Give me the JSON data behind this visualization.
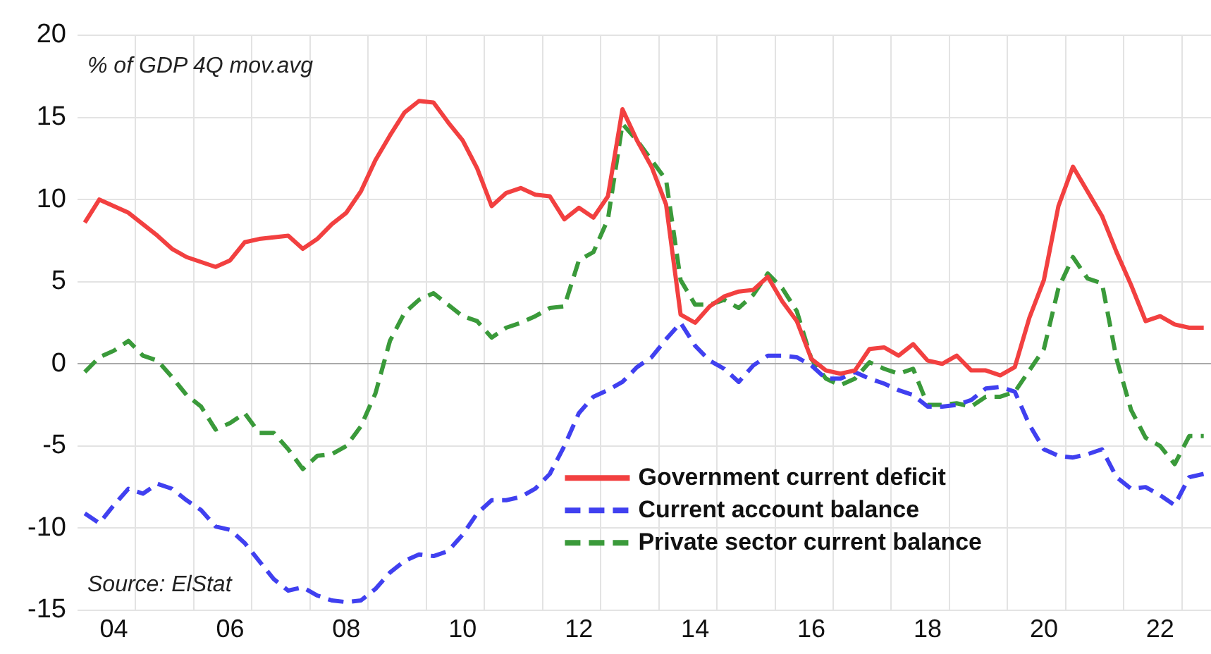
{
  "chart_data": {
    "type": "line",
    "ylabel": "% of GDP 4Q mov.avg",
    "annotations": [
      "Source: ElStat"
    ],
    "categories": [
      null,
      null,
      "04",
      null,
      null,
      null,
      null,
      null,
      null,
      null,
      "06",
      null,
      null,
      null,
      null,
      null,
      null,
      null,
      "08",
      null,
      null,
      null,
      null,
      null,
      null,
      null,
      "10",
      null,
      null,
      null,
      null,
      null,
      null,
      null,
      "12",
      null,
      null,
      null,
      null,
      null,
      null,
      null,
      "14",
      null,
      null,
      null,
      null,
      null,
      null,
      null,
      "16",
      null,
      null,
      null,
      null,
      null,
      null,
      null,
      "18",
      null,
      null,
      null,
      null,
      null,
      null,
      null,
      "20",
      null,
      null,
      null,
      null,
      null,
      null,
      null,
      "22",
      null,
      null,
      null
    ],
    "series": [
      {
        "name": "Government current deficit",
        "color": "#f24040",
        "line_style": "solid",
        "values": [
          8.6,
          10.0,
          9.6,
          9.2,
          8.5,
          7.8,
          7.0,
          6.5,
          6.2,
          5.9,
          6.3,
          7.4,
          7.6,
          7.7,
          7.8,
          7.0,
          7.6,
          8.5,
          9.2,
          10.5,
          12.4,
          13.9,
          15.3,
          16.0,
          15.9,
          14.7,
          13.6,
          11.9,
          9.6,
          10.4,
          10.7,
          10.3,
          10.2,
          8.8,
          9.5,
          8.9,
          10.2,
          15.5,
          13.6,
          12.0,
          9.7,
          3.0,
          2.5,
          3.5,
          4.1,
          4.4,
          4.5,
          5.3,
          3.8,
          2.6,
          0.3,
          -0.4,
          -0.6,
          -0.4,
          0.9,
          1.0,
          0.5,
          1.2,
          0.2,
          0.0,
          0.5,
          -0.4,
          -0.4,
          -0.7,
          -0.2,
          2.8,
          5.1,
          9.6,
          12.0,
          10.5,
          9.0,
          6.8,
          4.8,
          2.6,
          2.9,
          2.4,
          2.2,
          2.2
        ]
      },
      {
        "name": "Current account balance",
        "color": "#4040f0",
        "line_style": "dashed",
        "values": [
          -9.1,
          -9.7,
          -8.6,
          -7.6,
          -7.9,
          -7.3,
          -7.6,
          -8.3,
          -8.9,
          -9.9,
          -10.1,
          -10.9,
          -12.0,
          -13.1,
          -13.8,
          -13.6,
          -14.1,
          -14.4,
          -14.5,
          -14.4,
          -13.7,
          -12.7,
          -12.0,
          -11.6,
          -11.7,
          -11.4,
          -10.4,
          -9.1,
          -8.3,
          -8.3,
          -8.1,
          -7.6,
          -6.7,
          -5.0,
          -3.0,
          -2.0,
          -1.6,
          -1.1,
          -0.2,
          0.4,
          1.5,
          2.5,
          1.1,
          0.2,
          -0.3,
          -1.1,
          -0.1,
          0.5,
          0.5,
          0.4,
          -0.1,
          -0.9,
          -0.9,
          -0.5,
          -0.9,
          -1.2,
          -1.6,
          -1.9,
          -2.6,
          -2.6,
          -2.5,
          -2.2,
          -1.5,
          -1.4,
          -1.7,
          -3.7,
          -5.2,
          -5.6,
          -5.7,
          -5.5,
          -5.2,
          -6.9,
          -7.6,
          -7.5,
          -8.0,
          -8.6,
          -6.9,
          -6.7
        ]
      },
      {
        "name": "Private sector current balance",
        "color": "#3a9a3a",
        "line_style": "dashed",
        "values": [
          -0.5,
          0.4,
          0.8,
          1.4,
          0.5,
          0.2,
          -0.8,
          -1.9,
          -2.6,
          -4.0,
          -3.6,
          -3.0,
          -4.2,
          -4.2,
          -5.2,
          -6.4,
          -5.6,
          -5.5,
          -5.0,
          -3.8,
          -1.8,
          1.4,
          3.1,
          3.9,
          4.3,
          3.6,
          2.9,
          2.6,
          1.6,
          2.2,
          2.5,
          2.9,
          3.4,
          3.5,
          6.3,
          6.8,
          8.8,
          14.6,
          13.6,
          12.4,
          11.2,
          5.1,
          3.6,
          3.6,
          3.9,
          3.4,
          4.2,
          5.5,
          4.6,
          3.2,
          0.3,
          -0.9,
          -1.3,
          -0.9,
          0.1,
          -0.3,
          -0.6,
          -0.3,
          -2.5,
          -2.5,
          -2.4,
          -2.6,
          -2.0,
          -2.0,
          -1.7,
          -0.4,
          0.9,
          4.6,
          6.5,
          5.2,
          4.9,
          0.3,
          -2.8,
          -4.5,
          -5.0,
          -6.1,
          -4.4,
          -4.4
        ]
      }
    ],
    "ylim": [
      -15,
      20
    ],
    "yticks": [
      -15,
      -10,
      -5,
      0,
      5,
      10,
      15,
      20
    ],
    "grid": true,
    "legend": "bottom",
    "marker": "none"
  }
}
